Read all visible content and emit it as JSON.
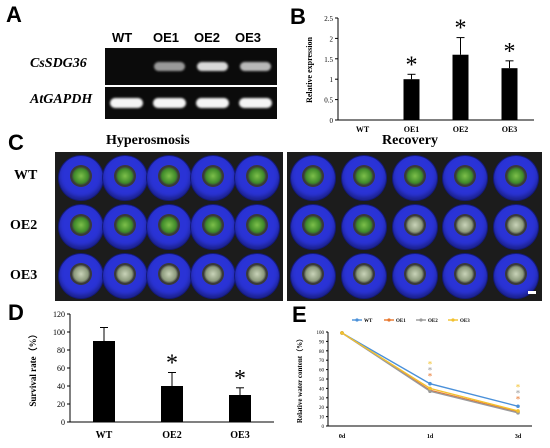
{
  "panels": {
    "a": "A",
    "b": "B",
    "c": "C",
    "d": "D",
    "e": "E"
  },
  "gel": {
    "genes": [
      "CsSDG36",
      "AtGAPDH"
    ],
    "lanes": [
      "WT",
      "OE1",
      "OE2",
      "OE3"
    ],
    "sdg36_intensity": [
      0.0,
      0.55,
      0.85,
      0.7
    ],
    "gapdh_intensity": [
      0.9,
      0.9,
      0.9,
      0.9
    ]
  },
  "photos": {
    "left_title": "Hyperosmosis",
    "right_title": "Recovery",
    "rows": [
      "WT",
      "OE2",
      "OE3"
    ],
    "pots_per_row": 5
  },
  "chart_data": [
    {
      "type": "bar",
      "panel": "B",
      "categories": [
        "WT",
        "OE1",
        "OE2",
        "OE3"
      ],
      "values": [
        0,
        1.0,
        1.6,
        1.27
      ],
      "errors": [
        0,
        0.12,
        0.42,
        0.18
      ],
      "significance": [
        "",
        "*",
        "*",
        "*"
      ],
      "ylabel": "Relative expression",
      "ylim": [
        0,
        2.5
      ],
      "yticks": [
        "0",
        "0.5",
        "1",
        "1.5",
        "2",
        "2.5"
      ]
    },
    {
      "type": "bar",
      "panel": "D",
      "categories": [
        "WT",
        "OE2",
        "OE3"
      ],
      "values": [
        90,
        40,
        30
      ],
      "errors": [
        15,
        15,
        8
      ],
      "significance": [
        "",
        "*",
        "*"
      ],
      "ylabel": "Survival rate（%）",
      "ylim": [
        0,
        120
      ],
      "yticks": [
        "0",
        "20",
        "40",
        "60",
        "80",
        "100",
        "120"
      ]
    },
    {
      "type": "line",
      "panel": "E",
      "x": [
        "0d",
        "1d",
        "3d"
      ],
      "series": [
        {
          "name": "WT",
          "color": "#4a90d9",
          "values": [
            99,
            45,
            21
          ]
        },
        {
          "name": "OE1",
          "color": "#e8762c",
          "values": [
            99,
            38,
            15
          ]
        },
        {
          "name": "OE2",
          "color": "#9a9a9a",
          "values": [
            99,
            37,
            14
          ]
        },
        {
          "name": "OE3",
          "color": "#f2c12e",
          "values": [
            99,
            40,
            16
          ]
        }
      ],
      "significance": {
        "1d": [
          "*",
          "*",
          "*"
        ],
        "3d": [
          "*",
          "*",
          "*"
        ]
      },
      "ylabel": "Relative water content（%）",
      "ylim": [
        0,
        100
      ],
      "yticks": [
        "0",
        "10",
        "20",
        "30",
        "40",
        "50",
        "60",
        "70",
        "80",
        "90",
        "100"
      ],
      "legend": "top"
    }
  ]
}
